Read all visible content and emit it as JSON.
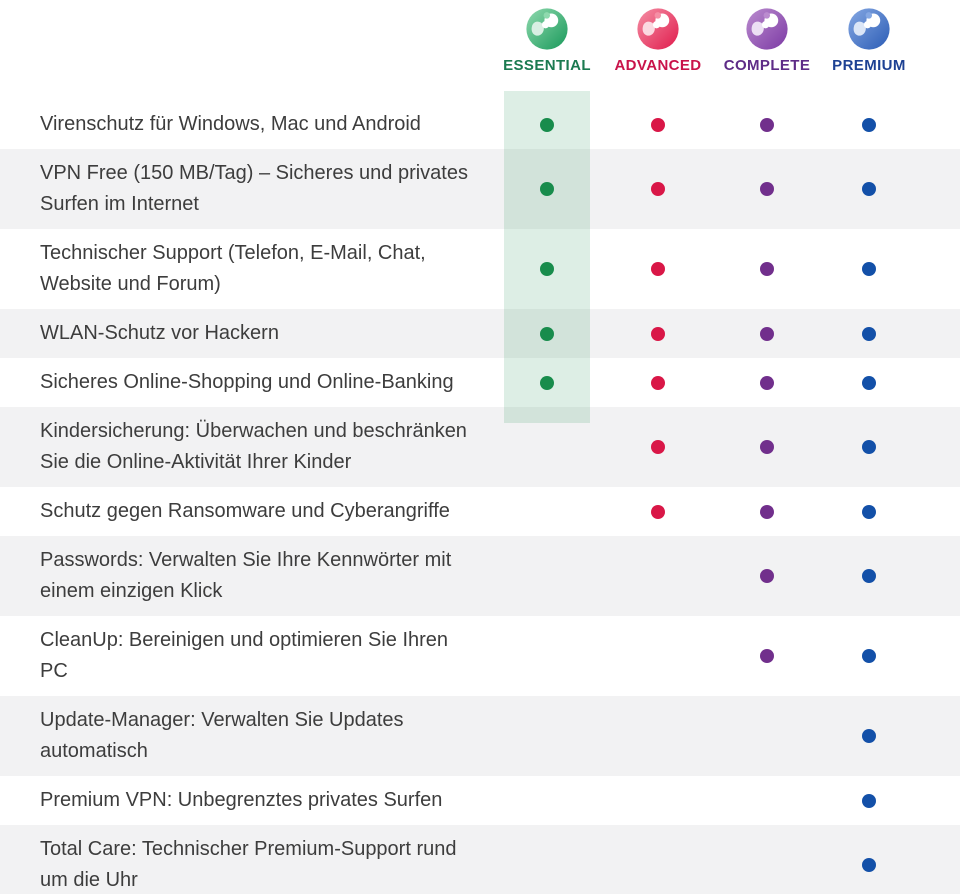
{
  "table": {
    "plans": [
      {
        "name": "ESSENTIAL",
        "label_color": "#1b7a50",
        "dot_color": "#188c4c",
        "icon_light": "#8fd9ae",
        "icon_dark": "#19995a",
        "icon_drop": "#d9efe3",
        "highlighted": true
      },
      {
        "name": "ADVANCED",
        "label_color": "#c9134a",
        "dot_color": "#d91747",
        "icon_light": "#f58fa5",
        "icon_dark": "#e01b4c",
        "icon_drop": "#fbd9e1",
        "highlighted": false
      },
      {
        "name": "COMPLETE",
        "label_color": "#5e2c87",
        "dot_color": "#712f8c",
        "icon_light": "#bb8ccf",
        "icon_dark": "#7c3aa4",
        "icon_drop": "#ecdff4",
        "highlighted": false
      },
      {
        "name": "PREMIUM",
        "label_color": "#1d4193",
        "dot_color": "#1350a8",
        "icon_light": "#85a8e3",
        "icon_dark": "#2b5cb5",
        "icon_drop": "#dbe6f7",
        "highlighted": false
      }
    ],
    "features": [
      {
        "text": "Virenschutz für Windows, Mac und Android",
        "included": [
          true,
          true,
          true,
          true
        ]
      },
      {
        "text": "VPN Free (150 MB/Tag) – Sicheres und privates\nSurfen im Internet",
        "included": [
          true,
          true,
          true,
          true
        ]
      },
      {
        "text": "Technischer Support (Telefon, E-Mail, Chat,\nWebsite und Forum)",
        "included": [
          true,
          true,
          true,
          true
        ]
      },
      {
        "text": "WLAN-Schutz vor Hackern",
        "included": [
          true,
          true,
          true,
          true
        ]
      },
      {
        "text": "Sicheres Online-Shopping und Online-Banking",
        "included": [
          true,
          true,
          true,
          true
        ]
      },
      {
        "text": "Kindersicherung: Überwachen und beschränken\nSie die Online-Aktivität Ihrer Kinder",
        "included": [
          false,
          true,
          true,
          true
        ]
      },
      {
        "text": "Schutz gegen Ransomware und Cyberangriffe",
        "included": [
          false,
          true,
          true,
          true
        ]
      },
      {
        "text": "Passwords: Verwalten Sie Ihre Kennwörter mit\neinem einzigen Klick",
        "included": [
          false,
          false,
          true,
          true
        ]
      },
      {
        "text": "CleanUp: Bereinigen und optimieren Sie Ihren\nPC",
        "included": [
          false,
          false,
          true,
          true
        ]
      },
      {
        "text": "Update-Manager: Verwalten Sie Updates\nautomatisch",
        "included": [
          false,
          false,
          false,
          true
        ]
      },
      {
        "text": "Premium VPN: Unbegrenztes privates Surfen",
        "included": [
          false,
          false,
          false,
          true
        ]
      },
      {
        "text": "Total Care: Technischer Premium-Support rund\num die Uhr",
        "included": [
          false,
          false,
          false,
          true
        ]
      }
    ],
    "colors": {
      "stripe": "#f2f2f3",
      "text": "#3d3d3d",
      "highlight": "rgba(26,138,78,0.15)",
      "background": "#ffffff"
    }
  }
}
